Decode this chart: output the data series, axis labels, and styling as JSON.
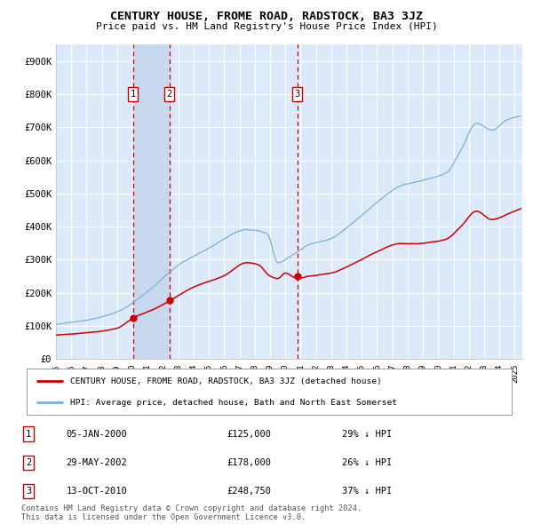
{
  "title": "CENTURY HOUSE, FROME ROAD, RADSTOCK, BA3 3JZ",
  "subtitle": "Price paid vs. HM Land Registry's House Price Index (HPI)",
  "ylim_max": 950000,
  "xlim_start": 1995.0,
  "xlim_end": 2025.5,
  "plot_bg_color": "#dce9f8",
  "shade_color": "#c8d8ee",
  "grid_color": "#ffffff",
  "red_line_color": "#cc0000",
  "blue_line_color": "#7ab0d4",
  "sale_points": [
    {
      "year": 2000.03,
      "value": 125000,
      "label": "1"
    },
    {
      "year": 2002.41,
      "value": 178000,
      "label": "2"
    },
    {
      "year": 2010.78,
      "value": 248750,
      "label": "3"
    }
  ],
  "legend_entries": [
    {
      "label": "CENTURY HOUSE, FROME ROAD, RADSTOCK, BA3 3JZ (detached house)",
      "color": "#cc0000"
    },
    {
      "label": "HPI: Average price, detached house, Bath and North East Somerset",
      "color": "#7ab0d4"
    }
  ],
  "table_rows": [
    {
      "num": "1",
      "date": "05-JAN-2000",
      "price": "£125,000",
      "note": "29% ↓ HPI"
    },
    {
      "num": "2",
      "date": "29-MAY-2002",
      "price": "£178,000",
      "note": "26% ↓ HPI"
    },
    {
      "num": "3",
      "date": "13-OCT-2010",
      "price": "£248,750",
      "note": "37% ↓ HPI"
    }
  ],
  "footer": "Contains HM Land Registry data © Crown copyright and database right 2024.\nThis data is licensed under the Open Government Licence v3.0.",
  "yticks": [
    0,
    100000,
    200000,
    300000,
    400000,
    500000,
    600000,
    700000,
    800000,
    900000
  ],
  "ytick_labels": [
    "£0",
    "£100K",
    "£200K",
    "£300K",
    "£400K",
    "£500K",
    "£600K",
    "£700K",
    "£800K",
    "£900K"
  ]
}
